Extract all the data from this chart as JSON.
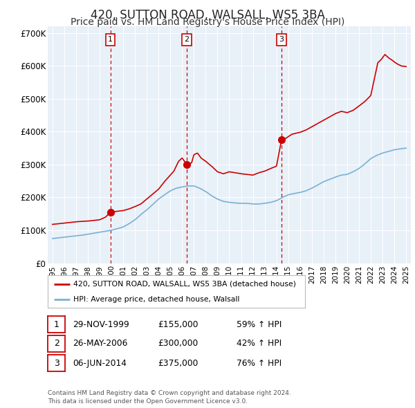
{
  "title": "420, SUTTON ROAD, WALSALL, WS5 3BA",
  "subtitle": "Price paid vs. HM Land Registry's House Price Index (HPI)",
  "ylim": [
    0,
    720000
  ],
  "yticks": [
    0,
    100000,
    200000,
    300000,
    400000,
    500000,
    600000,
    700000
  ],
  "ytick_labels": [
    "£0",
    "£100K",
    "£200K",
    "£300K",
    "£400K",
    "£500K",
    "£600K",
    "£700K"
  ],
  "bg_color": "#e8f0f8",
  "fig_bg": "#ffffff",
  "grid_color": "#ffffff",
  "red_line_color": "#cc0000",
  "blue_line_color": "#7ab0d4",
  "sale_dates": [
    1999.91,
    2006.4,
    2014.43
  ],
  "sale_prices": [
    155000,
    300000,
    375000
  ],
  "sale_labels": [
    "1",
    "2",
    "3"
  ],
  "vline_color": "#cc0000",
  "legend_red_label": "420, SUTTON ROAD, WALSALL, WS5 3BA (detached house)",
  "legend_blue_label": "HPI: Average price, detached house, Walsall",
  "table_rows": [
    [
      "1",
      "29-NOV-1999",
      "£155,000",
      "59% ↑ HPI"
    ],
    [
      "2",
      "26-MAY-2006",
      "£300,000",
      "42% ↑ HPI"
    ],
    [
      "3",
      "06-JUN-2014",
      "£375,000",
      "76% ↑ HPI"
    ]
  ],
  "footer": "Contains HM Land Registry data © Crown copyright and database right 2024.\nThis data is licensed under the Open Government Licence v3.0.",
  "title_fontsize": 12,
  "subtitle_fontsize": 10,
  "red_knots": [
    1995.0,
    1995.5,
    1996.0,
    1996.5,
    1997.0,
    1997.5,
    1998.0,
    1998.5,
    1999.0,
    1999.5,
    1999.91,
    2000.5,
    2001.0,
    2001.5,
    2002.0,
    2002.5,
    2003.0,
    2003.5,
    2004.0,
    2004.5,
    2005.0,
    2005.3,
    2005.7,
    2006.0,
    2006.4,
    2006.8,
    2007.0,
    2007.3,
    2007.6,
    2008.0,
    2008.5,
    2009.0,
    2009.5,
    2010.0,
    2010.5,
    2011.0,
    2011.5,
    2012.0,
    2012.5,
    2013.0,
    2013.5,
    2014.0,
    2014.43,
    2014.8,
    2015.0,
    2015.3,
    2015.6,
    2016.0,
    2016.5,
    2017.0,
    2017.5,
    2018.0,
    2018.5,
    2019.0,
    2019.5,
    2020.0,
    2020.5,
    2021.0,
    2021.5,
    2022.0,
    2022.3,
    2022.6,
    2022.9,
    2023.2,
    2023.5,
    2023.8,
    2024.0,
    2024.3,
    2024.6,
    2025.0
  ],
  "red_vals": [
    118000,
    120000,
    122000,
    124000,
    126000,
    127000,
    128000,
    130000,
    132000,
    140000,
    155000,
    158000,
    160000,
    165000,
    172000,
    180000,
    195000,
    210000,
    225000,
    248000,
    268000,
    280000,
    310000,
    320000,
    300000,
    305000,
    330000,
    335000,
    320000,
    310000,
    295000,
    278000,
    272000,
    278000,
    275000,
    272000,
    270000,
    268000,
    275000,
    280000,
    288000,
    295000,
    375000,
    380000,
    385000,
    392000,
    395000,
    398000,
    405000,
    415000,
    425000,
    435000,
    445000,
    455000,
    462000,
    458000,
    465000,
    478000,
    492000,
    510000,
    560000,
    610000,
    620000,
    635000,
    625000,
    618000,
    612000,
    605000,
    600000,
    598000
  ],
  "blue_knots": [
    1995.0,
    1995.5,
    1996.0,
    1996.5,
    1997.0,
    1997.5,
    1998.0,
    1998.5,
    1999.0,
    1999.5,
    2000.0,
    2000.5,
    2001.0,
    2001.5,
    2002.0,
    2002.5,
    2003.0,
    2003.5,
    2004.0,
    2004.5,
    2005.0,
    2005.5,
    2006.0,
    2006.5,
    2007.0,
    2007.5,
    2008.0,
    2008.5,
    2009.0,
    2009.5,
    2010.0,
    2010.5,
    2011.0,
    2011.5,
    2012.0,
    2012.5,
    2013.0,
    2013.5,
    2014.0,
    2014.5,
    2015.0,
    2015.5,
    2016.0,
    2016.5,
    2017.0,
    2017.5,
    2018.0,
    2018.5,
    2019.0,
    2019.5,
    2020.0,
    2020.5,
    2021.0,
    2021.5,
    2022.0,
    2022.5,
    2023.0,
    2023.5,
    2024.0,
    2024.5,
    2025.0
  ],
  "blue_vals": [
    75000,
    77000,
    79000,
    81000,
    83000,
    85000,
    88000,
    91000,
    94000,
    97000,
    100000,
    105000,
    110000,
    120000,
    132000,
    148000,
    162000,
    178000,
    195000,
    208000,
    220000,
    228000,
    232000,
    235000,
    235000,
    228000,
    218000,
    205000,
    195000,
    188000,
    185000,
    183000,
    182000,
    182000,
    180000,
    180000,
    182000,
    185000,
    190000,
    200000,
    208000,
    212000,
    215000,
    220000,
    228000,
    238000,
    248000,
    255000,
    262000,
    268000,
    270000,
    278000,
    288000,
    302000,
    318000,
    328000,
    335000,
    340000,
    345000,
    348000,
    350000
  ]
}
